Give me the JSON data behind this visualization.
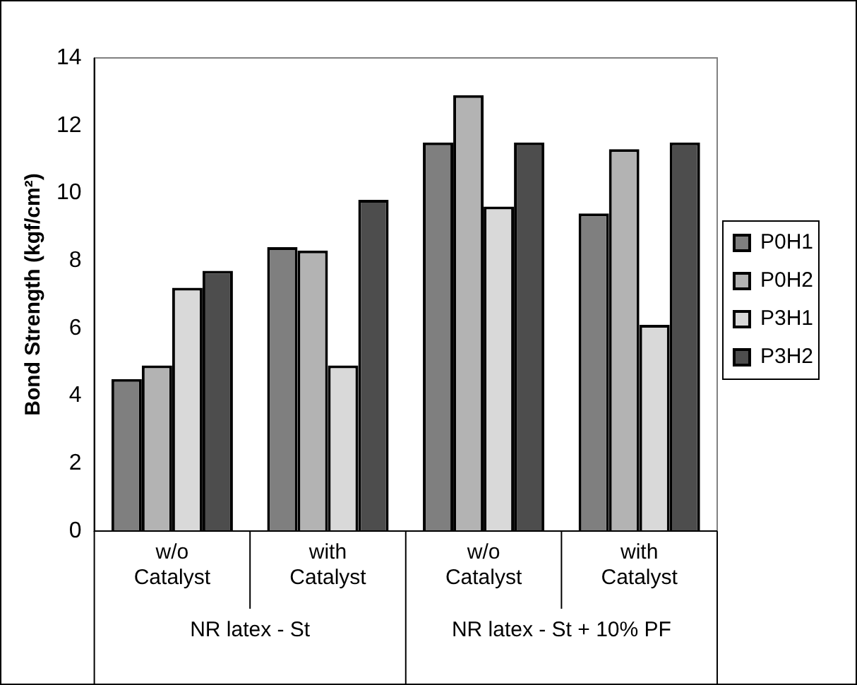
{
  "chart_data": {
    "type": "bar",
    "ylabel": "Bond Strength (kgf/cm²)",
    "categories": [
      "w/o Catalyst",
      "with Catalyst",
      "w/o Catalyst",
      "with Catalyst"
    ],
    "series": [
      {
        "name": "P0H1",
        "color": "#7f7f7f",
        "values": [
          4.5,
          8.4,
          11.5,
          9.4
        ]
      },
      {
        "name": "P0H2",
        "color": "#b3b3b3",
        "values": [
          4.9,
          8.3,
          12.9,
          11.3
        ]
      },
      {
        "name": "P3H1",
        "color": "#d9d9d9",
        "values": [
          7.2,
          4.9,
          9.6,
          6.1
        ]
      },
      {
        "name": "P3H2",
        "color": "#4d4d4d",
        "values": [
          7.7,
          9.8,
          11.5,
          11.5
        ]
      }
    ],
    "annotations": [
      "NR latex - St",
      "NR latex - St + 10% PF"
    ],
    "ylim": [
      0,
      14
    ],
    "yticks": [
      0,
      2,
      4,
      6,
      8,
      10,
      12,
      14
    ],
    "grid": false,
    "legend": "right"
  }
}
